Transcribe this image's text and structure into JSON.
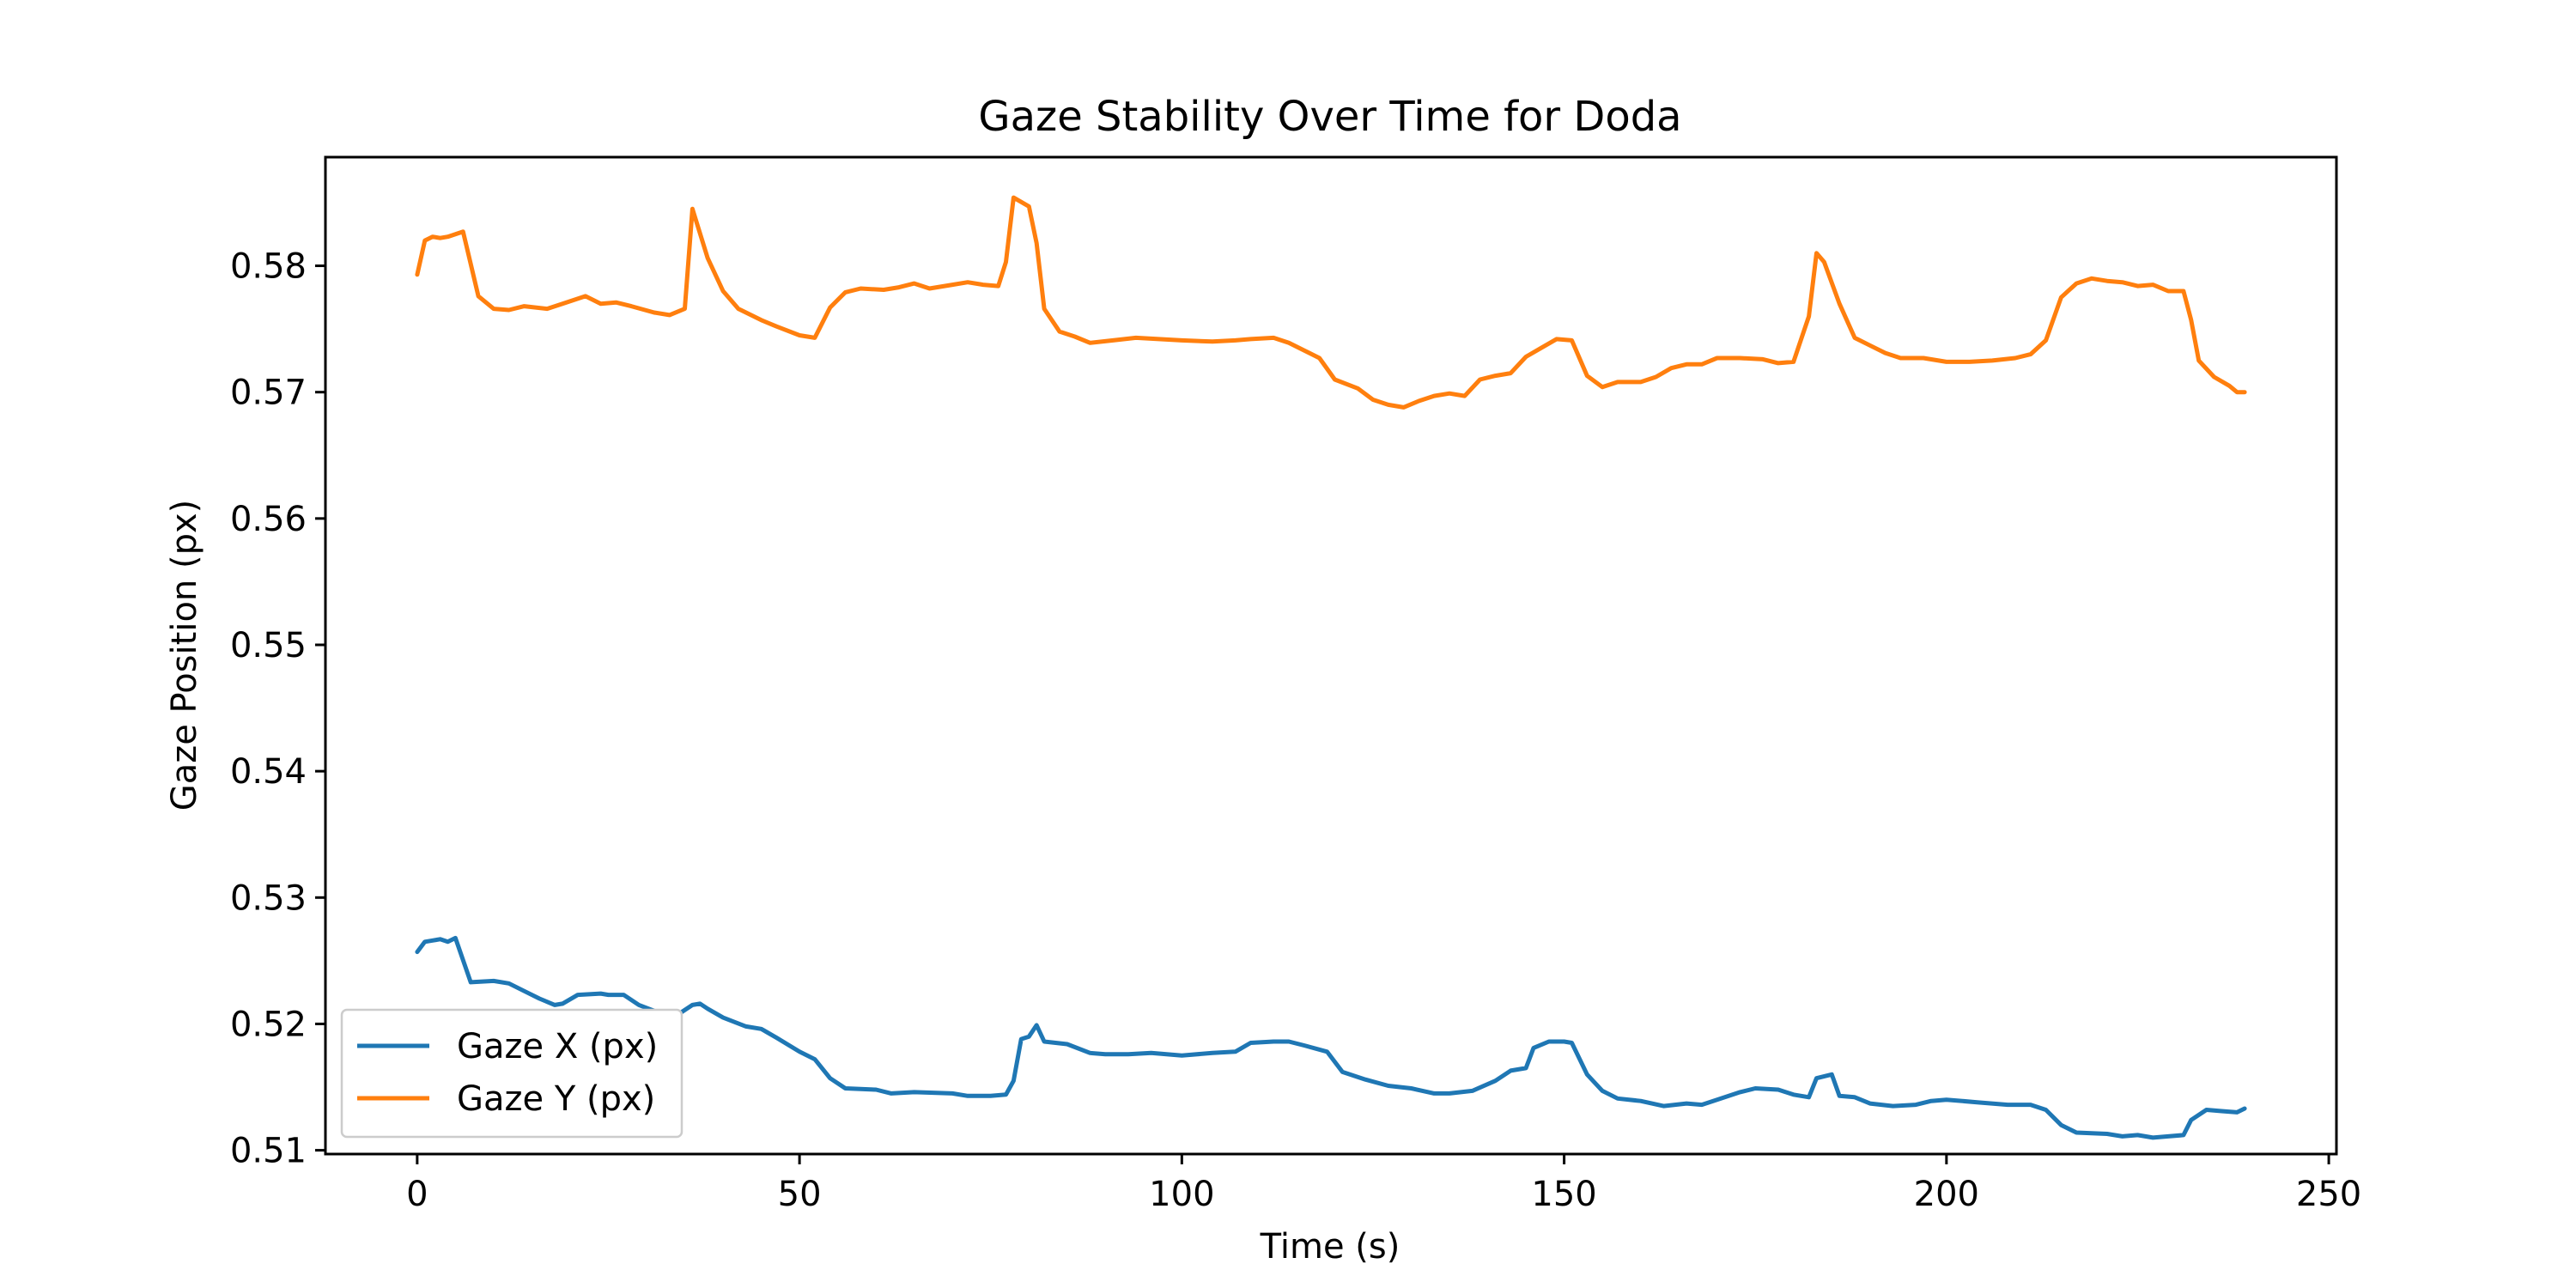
{
  "chart_data": {
    "type": "line",
    "title": "Gaze Stability Over Time for Doda",
    "xlabel": "Time (s)",
    "ylabel": "Gaze Position (px)",
    "xlim": [
      -12,
      251
    ],
    "ylim": [
      0.5097,
      0.5886
    ],
    "x_ticks": [
      0,
      50,
      100,
      150,
      200,
      250
    ],
    "y_ticks": [
      0.51,
      0.52,
      0.53,
      0.54,
      0.55,
      0.56,
      0.57,
      0.58
    ],
    "x_tick_labels": [
      "0",
      "50",
      "100",
      "150",
      "200",
      "250"
    ],
    "y_tick_labels": [
      "0.51",
      "0.52",
      "0.53",
      "0.54",
      "0.55",
      "0.56",
      "0.57",
      "0.58"
    ],
    "grid": false,
    "legend_position": "lower-left",
    "series": [
      {
        "name": "Gaze X (px)",
        "color": "#1f77b4",
        "points": [
          [
            0,
            0.5257
          ],
          [
            1,
            0.5265
          ],
          [
            2,
            0.5266
          ],
          [
            3,
            0.5267
          ],
          [
            4,
            0.5265
          ],
          [
            5,
            0.5268
          ],
          [
            7,
            0.5233
          ],
          [
            10,
            0.5234
          ],
          [
            12,
            0.5232
          ],
          [
            14,
            0.5226
          ],
          [
            16,
            0.522
          ],
          [
            18,
            0.5215
          ],
          [
            19,
            0.5216
          ],
          [
            21,
            0.5223
          ],
          [
            24,
            0.5224
          ],
          [
            25,
            0.5223
          ],
          [
            27,
            0.5223
          ],
          [
            29,
            0.5215
          ],
          [
            32,
            0.5208
          ],
          [
            34,
            0.5207
          ],
          [
            36,
            0.5215
          ],
          [
            37,
            0.5216
          ],
          [
            38,
            0.5212
          ],
          [
            40,
            0.5205
          ],
          [
            43,
            0.5198
          ],
          [
            45,
            0.5196
          ],
          [
            47,
            0.5189
          ],
          [
            50,
            0.5178
          ],
          [
            52,
            0.5172
          ],
          [
            54,
            0.5157
          ],
          [
            56,
            0.5149
          ],
          [
            60,
            0.5148
          ],
          [
            62,
            0.5145
          ],
          [
            65,
            0.5146
          ],
          [
            70,
            0.5145
          ],
          [
            72,
            0.5143
          ],
          [
            75,
            0.5143
          ],
          [
            77,
            0.5144
          ],
          [
            78,
            0.5155
          ],
          [
            79,
            0.5188
          ],
          [
            80,
            0.519
          ],
          [
            81,
            0.5199
          ],
          [
            82,
            0.5186
          ],
          [
            85,
            0.5184
          ],
          [
            88,
            0.5177
          ],
          [
            90,
            0.5176
          ],
          [
            93,
            0.5176
          ],
          [
            96,
            0.5177
          ],
          [
            100,
            0.5175
          ],
          [
            104,
            0.5177
          ],
          [
            107,
            0.5178
          ],
          [
            109,
            0.5185
          ],
          [
            112,
            0.5186
          ],
          [
            114,
            0.5186
          ],
          [
            116,
            0.5183
          ],
          [
            119,
            0.5178
          ],
          [
            121,
            0.5162
          ],
          [
            124,
            0.5156
          ],
          [
            127,
            0.5151
          ],
          [
            130,
            0.5149
          ],
          [
            133,
            0.5145
          ],
          [
            135,
            0.5145
          ],
          [
            138,
            0.5147
          ],
          [
            141,
            0.5155
          ],
          [
            143,
            0.5163
          ],
          [
            145,
            0.5165
          ],
          [
            146,
            0.5181
          ],
          [
            148,
            0.5186
          ],
          [
            150,
            0.5186
          ],
          [
            151,
            0.5185
          ],
          [
            153,
            0.516
          ],
          [
            155,
            0.5147
          ],
          [
            157,
            0.5141
          ],
          [
            160,
            0.5139
          ],
          [
            163,
            0.5135
          ],
          [
            166,
            0.5137
          ],
          [
            168,
            0.5136
          ],
          [
            170,
            0.514
          ],
          [
            173,
            0.5146
          ],
          [
            175,
            0.5149
          ],
          [
            178,
            0.5148
          ],
          [
            180,
            0.5144
          ],
          [
            182,
            0.5142
          ],
          [
            183,
            0.5157
          ],
          [
            185,
            0.516
          ],
          [
            186,
            0.5143
          ],
          [
            188,
            0.5142
          ],
          [
            190,
            0.5137
          ],
          [
            193,
            0.5135
          ],
          [
            196,
            0.5136
          ],
          [
            198,
            0.5139
          ],
          [
            200,
            0.514
          ],
          [
            204,
            0.5138
          ],
          [
            208,
            0.5136
          ],
          [
            211,
            0.5136
          ],
          [
            213,
            0.5132
          ],
          [
            215,
            0.512
          ],
          [
            217,
            0.5114
          ],
          [
            221,
            0.5113
          ],
          [
            223,
            0.5111
          ],
          [
            225,
            0.5112
          ],
          [
            227,
            0.511
          ],
          [
            229,
            0.5111
          ],
          [
            231,
            0.5112
          ],
          [
            232,
            0.5124
          ],
          [
            234,
            0.5132
          ],
          [
            236,
            0.5131
          ],
          [
            238,
            0.513
          ],
          [
            239,
            0.5133
          ]
        ]
      },
      {
        "name": "Gaze Y (px)",
        "color": "#ff7f0e",
        "points": [
          [
            0,
            0.5793
          ],
          [
            1,
            0.582
          ],
          [
            2,
            0.5823
          ],
          [
            3,
            0.5822
          ],
          [
            4,
            0.5823
          ],
          [
            5,
            0.5825
          ],
          [
            6,
            0.5827
          ],
          [
            8,
            0.5776
          ],
          [
            10,
            0.5766
          ],
          [
            12,
            0.5765
          ],
          [
            14,
            0.5768
          ],
          [
            17,
            0.5766
          ],
          [
            19,
            0.577
          ],
          [
            22,
            0.5776
          ],
          [
            24,
            0.577
          ],
          [
            26,
            0.5771
          ],
          [
            28,
            0.5768
          ],
          [
            31,
            0.5763
          ],
          [
            33,
            0.5761
          ],
          [
            35,
            0.5766
          ],
          [
            36,
            0.5845
          ],
          [
            38,
            0.5806
          ],
          [
            40,
            0.578
          ],
          [
            42,
            0.5766
          ],
          [
            45,
            0.5757
          ],
          [
            47,
            0.5752
          ],
          [
            50,
            0.5745
          ],
          [
            52,
            0.5743
          ],
          [
            54,
            0.5767
          ],
          [
            56,
            0.5779
          ],
          [
            58,
            0.5782
          ],
          [
            61,
            0.5781
          ],
          [
            63,
            0.5783
          ],
          [
            65,
            0.5786
          ],
          [
            67,
            0.5782
          ],
          [
            70,
            0.5785
          ],
          [
            72,
            0.5787
          ],
          [
            74,
            0.5785
          ],
          [
            76,
            0.5784
          ],
          [
            77,
            0.5803
          ],
          [
            78,
            0.5854
          ],
          [
            80,
            0.5847
          ],
          [
            81,
            0.5818
          ],
          [
            82,
            0.5766
          ],
          [
            84,
            0.5748
          ],
          [
            86,
            0.5744
          ],
          [
            88,
            0.5739
          ],
          [
            91,
            0.5741
          ],
          [
            94,
            0.5743
          ],
          [
            97,
            0.5742
          ],
          [
            100,
            0.5741
          ],
          [
            104,
            0.574
          ],
          [
            107,
            0.5741
          ],
          [
            109,
            0.5742
          ],
          [
            112,
            0.5743
          ],
          [
            114,
            0.5739
          ],
          [
            116,
            0.5733
          ],
          [
            118,
            0.5727
          ],
          [
            120,
            0.571
          ],
          [
            123,
            0.5703
          ],
          [
            125,
            0.5694
          ],
          [
            127,
            0.569
          ],
          [
            129,
            0.5688
          ],
          [
            131,
            0.5693
          ],
          [
            133,
            0.5697
          ],
          [
            135,
            0.5699
          ],
          [
            137,
            0.5697
          ],
          [
            139,
            0.571
          ],
          [
            141,
            0.5713
          ],
          [
            143,
            0.5715
          ],
          [
            145,
            0.5728
          ],
          [
            147,
            0.5735
          ],
          [
            149,
            0.5742
          ],
          [
            151,
            0.5741
          ],
          [
            153,
            0.5713
          ],
          [
            155,
            0.5704
          ],
          [
            157,
            0.5708
          ],
          [
            160,
            0.5708
          ],
          [
            162,
            0.5712
          ],
          [
            164,
            0.5719
          ],
          [
            166,
            0.5722
          ],
          [
            168,
            0.5722
          ],
          [
            170,
            0.5727
          ],
          [
            173,
            0.5727
          ],
          [
            176,
            0.5726
          ],
          [
            178,
            0.5723
          ],
          [
            180,
            0.5724
          ],
          [
            182,
            0.576
          ],
          [
            183,
            0.581
          ],
          [
            184,
            0.5803
          ],
          [
            186,
            0.577
          ],
          [
            188,
            0.5743
          ],
          [
            190,
            0.5737
          ],
          [
            192,
            0.5731
          ],
          [
            194,
            0.5727
          ],
          [
            197,
            0.5727
          ],
          [
            200,
            0.5724
          ],
          [
            203,
            0.5724
          ],
          [
            206,
            0.5725
          ],
          [
            209,
            0.5727
          ],
          [
            211,
            0.573
          ],
          [
            213,
            0.5741
          ],
          [
            215,
            0.5775
          ],
          [
            217,
            0.5786
          ],
          [
            219,
            0.579
          ],
          [
            221,
            0.5788
          ],
          [
            223,
            0.5787
          ],
          [
            225,
            0.5784
          ],
          [
            227,
            0.5785
          ],
          [
            229,
            0.578
          ],
          [
            231,
            0.578
          ],
          [
            232,
            0.5757
          ],
          [
            233,
            0.5725
          ],
          [
            235,
            0.5712
          ],
          [
            237,
            0.5705
          ],
          [
            238,
            0.57
          ],
          [
            239,
            0.57
          ]
        ]
      }
    ]
  }
}
